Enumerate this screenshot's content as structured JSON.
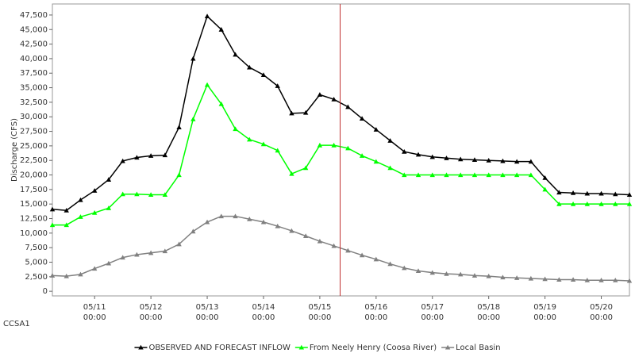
{
  "chart_data": {
    "type": "line",
    "y_label": "Discharge (CFS)",
    "station": "CCSA1",
    "x": [
      "05/10 06:00",
      "05/10 12:00",
      "05/10 18:00",
      "05/11 00:00",
      "05/11 06:00",
      "05/11 12:00",
      "05/11 18:00",
      "05/12 00:00",
      "05/12 06:00",
      "05/12 12:00",
      "05/12 18:00",
      "05/13 00:00",
      "05/13 06:00",
      "05/13 12:00",
      "05/13 18:00",
      "05/14 00:00",
      "05/14 06:00",
      "05/14 12:00",
      "05/14 18:00",
      "05/15 00:00",
      "05/15 06:00",
      "05/15 12:00",
      "05/15 18:00",
      "05/16 00:00",
      "05/16 06:00",
      "05/16 12:00",
      "05/16 18:00",
      "05/17 00:00",
      "05/17 06:00",
      "05/17 12:00",
      "05/17 18:00",
      "05/18 00:00",
      "05/18 06:00",
      "05/18 12:00",
      "05/18 18:00",
      "05/19 00:00",
      "05/19 06:00",
      "05/19 12:00",
      "05/19 18:00",
      "05/20 00:00",
      "05/20 06:00",
      "05/20 12:00"
    ],
    "series": [
      {
        "name": "OBSERVED AND FORECAST INFLOW",
        "color": "#000000",
        "values": [
          14100,
          13900,
          15700,
          17300,
          19200,
          22400,
          23000,
          23300,
          23400,
          28200,
          40000,
          47300,
          45000,
          40700,
          38500,
          37200,
          35300,
          30600,
          30700,
          33800,
          33000,
          31700,
          29700,
          27800,
          25900,
          24000,
          23500,
          23100,
          22900,
          22700,
          22600,
          22500,
          22400,
          22300,
          22300,
          19500,
          17000,
          16900,
          16800,
          16800,
          16700,
          16600
        ]
      },
      {
        "name": "From Neely Henry (Coosa River)",
        "color": "#00ff00",
        "values": [
          11400,
          11400,
          12800,
          13500,
          14300,
          16700,
          16700,
          16600,
          16600,
          20000,
          29600,
          35500,
          32200,
          27900,
          26100,
          25300,
          24200,
          20200,
          21200,
          25100,
          25100,
          24600,
          23300,
          22300,
          21200,
          20000,
          20000,
          20000,
          20000,
          20000,
          20000,
          20000,
          20000,
          20000,
          20000,
          17500,
          15000,
          15000,
          15000,
          15000,
          15000,
          15000
        ]
      },
      {
        "name": "Local Basin",
        "color": "#808080",
        "values": [
          2700,
          2600,
          2900,
          3900,
          4800,
          5800,
          6300,
          6600,
          6900,
          8100,
          10300,
          11900,
          12900,
          12900,
          12400,
          11900,
          11200,
          10400,
          9500,
          8600,
          7800,
          7000,
          6200,
          5500,
          4700,
          4000,
          3500,
          3200,
          3000,
          2900,
          2700,
          2600,
          2400,
          2300,
          2200,
          2100,
          2000,
          2000,
          1900,
          1900,
          1900,
          1800
        ]
      }
    ],
    "xlim": [
      "05/10 06:00",
      "05/20 12:00"
    ],
    "xticks": [
      "05/11 00:00",
      "05/12 00:00",
      "05/13 00:00",
      "05/14 00:00",
      "05/15 00:00",
      "05/16 00:00",
      "05/17 00:00",
      "05/18 00:00",
      "05/19 00:00",
      "05/20 00:00"
    ],
    "ylim": [
      -800,
      49400
    ],
    "yticks": [
      0,
      {
        "value": 2500,
        "label": "2,500"
      },
      {
        "value": 5000,
        "label": "5,000"
      },
      {
        "value": 7500,
        "label": "7,500"
      },
      {
        "value": 10000,
        "label": "10,000"
      },
      {
        "value": 12500,
        "label": "12,500"
      },
      {
        "value": 15000,
        "label": "15,000"
      },
      {
        "value": 17500,
        "label": "17,500"
      },
      {
        "value": 20000,
        "label": "20,000"
      },
      {
        "value": 22500,
        "label": "22,500"
      },
      {
        "value": 25000,
        "label": "25,000"
      },
      {
        "value": 27500,
        "label": "27,500"
      },
      {
        "value": 30000,
        "label": "30,000"
      },
      {
        "value": 32500,
        "label": "32,500"
      },
      {
        "value": 35000,
        "label": "35,000"
      },
      {
        "value": 37500,
        "label": "37,500"
      },
      {
        "value": 40000,
        "label": "40,000"
      },
      {
        "value": 42500,
        "label": "42,500"
      },
      {
        "value": 45000,
        "label": "45,000"
      },
      {
        "value": 47500,
        "label": "47,500"
      }
    ],
    "marker_line": {
      "x": "05/15 08:40",
      "color": "#c03030"
    },
    "legend": "bottom"
  }
}
